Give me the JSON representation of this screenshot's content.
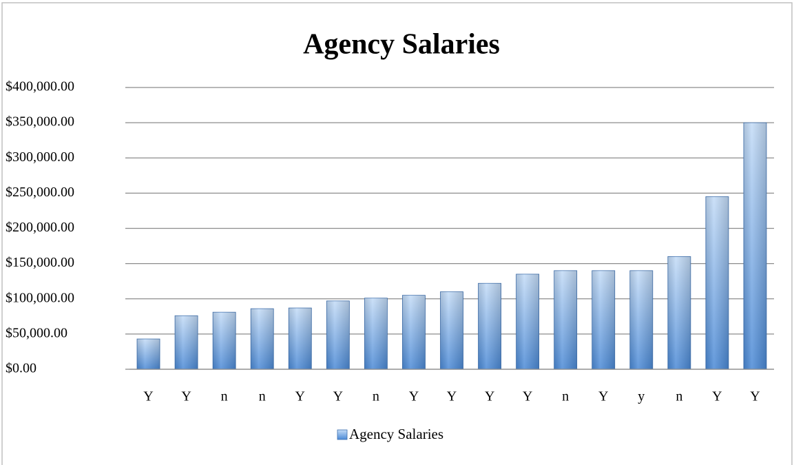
{
  "chart_data": {
    "type": "bar",
    "title": "Agency Salaries",
    "categories": [
      "Y",
      "Y",
      "n",
      "n",
      "Y",
      "Y",
      "n",
      "Y",
      "Y",
      "Y",
      "Y",
      "n",
      "Y",
      "y",
      "n",
      "Y",
      "Y"
    ],
    "series": [
      {
        "name": "Agency Salaries",
        "color": "#4a89d6",
        "values": [
          43000,
          76000,
          81000,
          86000,
          87000,
          97000,
          101000,
          105000,
          110000,
          122000,
          135000,
          140000,
          140000,
          140000,
          160000,
          245000,
          350000
        ]
      }
    ],
    "ylim": [
      0,
      400000
    ],
    "yticks": [
      {
        "value": 0,
        "label": "$0.00"
      },
      {
        "value": 50000,
        "label": "$50,000.00"
      },
      {
        "value": 100000,
        "label": "$100,000.00"
      },
      {
        "value": 150000,
        "label": "$150,000.00"
      },
      {
        "value": 200000,
        "label": "$200,000.00"
      },
      {
        "value": 250000,
        "label": "$250,000.00"
      },
      {
        "value": 300000,
        "label": "$300,000.00"
      },
      {
        "value": 350000,
        "label": "$350,000.00"
      },
      {
        "value": 400000,
        "label": "$400,000.00"
      }
    ],
    "grid": true,
    "legend": "bottom"
  }
}
